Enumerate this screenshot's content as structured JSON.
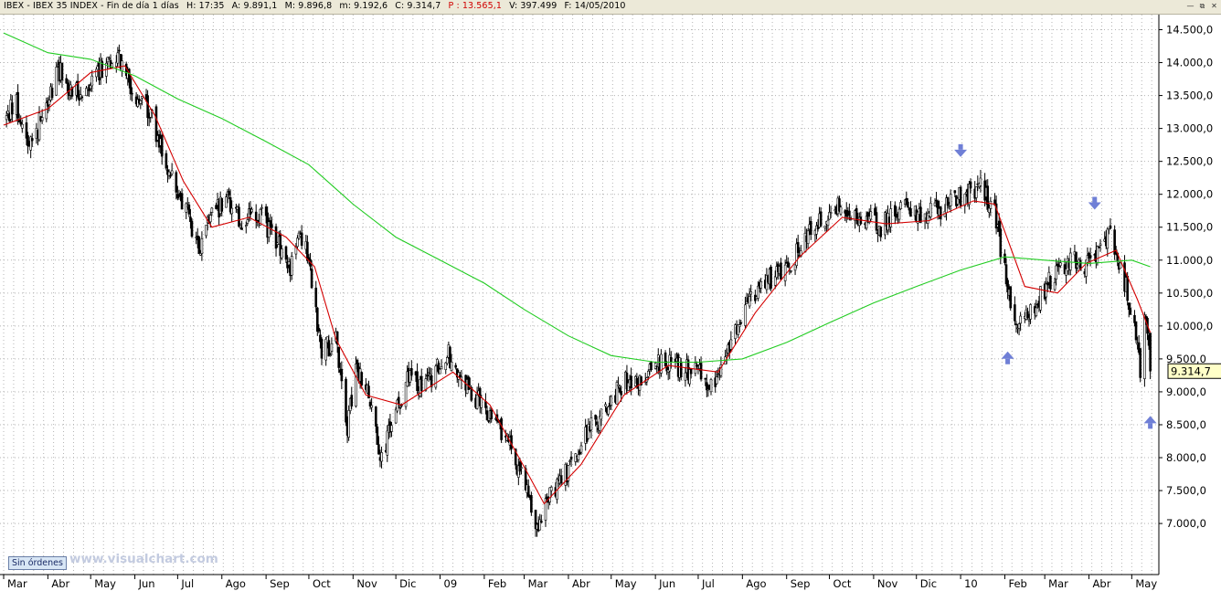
{
  "header": {
    "ticker": "IBEX - IBEX 35 INDEX - Fin de día 1 días",
    "time": "H: 17:35",
    "open": "A: 9.891,1",
    "high": "M: 9.896,8",
    "low": "m: 9.192,6",
    "close": "C: 9.314,7",
    "perf": "P : 13.565,1",
    "volume": "V: 397.499",
    "date": "F: 14/05/2010",
    "window_controls": [
      "minimize",
      "restore",
      "close"
    ]
  },
  "status_button": "Sin órdenes",
  "watermark": "www.visualchart.com",
  "last_price_label": "9.314,7",
  "chart_data": {
    "type": "candlestick",
    "ylim": [
      6400,
      14800
    ],
    "y_ticks": [
      7000,
      7500,
      8000,
      8500,
      9000,
      9500,
      10000,
      10500,
      11000,
      11500,
      12000,
      12500,
      13000,
      13500,
      14000,
      14500
    ],
    "y_tick_labels": [
      "7.000,0",
      "7.500,0",
      "8.000,0",
      "8.500,0",
      "9.000,0",
      "9.500,0",
      "10.000,0",
      "10.500,0",
      "11.000,0",
      "11.500,0",
      "12.000,0",
      "12.500,0",
      "13.000,0",
      "13.500,0",
      "14.000,0",
      "14.500,0"
    ],
    "x_range": [
      "2008-03-01",
      "2010-05-20"
    ],
    "x_labels": [
      {
        "label": "Mar",
        "date": "2008-03-01"
      },
      {
        "label": "Abr",
        "date": "2008-04-01"
      },
      {
        "label": "May",
        "date": "2008-05-01"
      },
      {
        "label": "Jun",
        "date": "2008-06-01"
      },
      {
        "label": "Jul",
        "date": "2008-07-01"
      },
      {
        "label": "Ago",
        "date": "2008-08-01"
      },
      {
        "label": "Sep",
        "date": "2008-09-01"
      },
      {
        "label": "Oct",
        "date": "2008-10-01"
      },
      {
        "label": "Nov",
        "date": "2008-11-01"
      },
      {
        "label": "Dic",
        "date": "2008-12-01"
      },
      {
        "label": "09",
        "date": "2009-01-01"
      },
      {
        "label": "Feb",
        "date": "2009-02-01"
      },
      {
        "label": "Mar",
        "date": "2009-03-01"
      },
      {
        "label": "Abr",
        "date": "2009-04-01"
      },
      {
        "label": "May",
        "date": "2009-05-01"
      },
      {
        "label": "Jun",
        "date": "2009-06-01"
      },
      {
        "label": "Jul",
        "date": "2009-07-01"
      },
      {
        "label": "Ago",
        "date": "2009-08-01"
      },
      {
        "label": "Sep",
        "date": "2009-09-01"
      },
      {
        "label": "Oct",
        "date": "2009-10-01"
      },
      {
        "label": "Nov",
        "date": "2009-11-01"
      },
      {
        "label": "Dic",
        "date": "2009-12-01"
      },
      {
        "label": "10",
        "date": "2010-01-01"
      },
      {
        "label": "Feb",
        "date": "2010-02-01"
      },
      {
        "label": "Mar",
        "date": "2010-03-01"
      },
      {
        "label": "Abr",
        "date": "2010-04-01"
      },
      {
        "label": "May",
        "date": "2010-05-01"
      }
    ],
    "price_path": [
      [
        "2008-03-01",
        13100
      ],
      [
        "2008-03-10",
        13400
      ],
      [
        "2008-03-17",
        12800
      ],
      [
        "2008-03-25",
        13000
      ],
      [
        "2008-04-01",
        13500
      ],
      [
        "2008-04-10",
        13900
      ],
      [
        "2008-04-20",
        13500
      ],
      [
        "2008-04-28",
        13700
      ],
      [
        "2008-05-08",
        13900
      ],
      [
        "2008-05-20",
        14200
      ],
      [
        "2008-05-30",
        13600
      ],
      [
        "2008-06-10",
        13300
      ],
      [
        "2008-06-20",
        12700
      ],
      [
        "2008-06-30",
        12100
      ],
      [
        "2008-07-10",
        11600
      ],
      [
        "2008-07-16",
        11100
      ],
      [
        "2008-07-25",
        11700
      ],
      [
        "2008-08-05",
        11900
      ],
      [
        "2008-08-15",
        11600
      ],
      [
        "2008-08-28",
        11700
      ],
      [
        "2008-09-05",
        11400
      ],
      [
        "2008-09-18",
        10900
      ],
      [
        "2008-09-25",
        11400
      ],
      [
        "2008-10-01",
        11000
      ],
      [
        "2008-10-10",
        9600
      ],
      [
        "2008-10-20",
        9800
      ],
      [
        "2008-10-28",
        8500
      ],
      [
        "2008-11-04",
        9400
      ],
      [
        "2008-11-12",
        8900
      ],
      [
        "2008-11-21",
        8000
      ],
      [
        "2008-12-01",
        8700
      ],
      [
        "2008-12-10",
        9200
      ],
      [
        "2008-12-20",
        9000
      ],
      [
        "2009-01-06",
        9600
      ],
      [
        "2009-01-15",
        9200
      ],
      [
        "2009-01-26",
        8900
      ],
      [
        "2009-02-09",
        8600
      ],
      [
        "2009-02-20",
        8100
      ],
      [
        "2009-03-02",
        7600
      ],
      [
        "2009-03-09",
        6900
      ],
      [
        "2009-03-20",
        7500
      ],
      [
        "2009-04-01",
        7800
      ],
      [
        "2009-04-15",
        8400
      ],
      [
        "2009-04-30",
        8800
      ],
      [
        "2009-05-10",
        9200
      ],
      [
        "2009-05-20",
        9100
      ],
      [
        "2009-06-01",
        9500
      ],
      [
        "2009-06-15",
        9400
      ],
      [
        "2009-06-30",
        9300
      ],
      [
        "2009-07-10",
        9100
      ],
      [
        "2009-07-25",
        9800
      ],
      [
        "2009-08-05",
        10400
      ],
      [
        "2009-08-20",
        10700
      ],
      [
        "2009-09-05",
        11000
      ],
      [
        "2009-09-20",
        11500
      ],
      [
        "2009-10-05",
        11800
      ],
      [
        "2009-10-20",
        11700
      ],
      [
        "2009-11-05",
        11500
      ],
      [
        "2009-11-20",
        11800
      ],
      [
        "2009-12-05",
        11700
      ],
      [
        "2009-12-20",
        11800
      ],
      [
        "2010-01-05",
        12000
      ],
      [
        "2010-01-15",
        12100
      ],
      [
        "2010-01-25",
        11700
      ],
      [
        "2010-02-04",
        10500
      ],
      [
        "2010-02-10",
        10100
      ],
      [
        "2010-02-22",
        10300
      ],
      [
        "2010-03-05",
        10700
      ],
      [
        "2010-03-18",
        11000
      ],
      [
        "2010-03-30",
        10900
      ],
      [
        "2010-04-10",
        11200
      ],
      [
        "2010-04-15",
        11400
      ],
      [
        "2010-04-27",
        10600
      ],
      [
        "2010-05-06",
        9600
      ],
      [
        "2010-05-07",
        9100
      ],
      [
        "2010-05-10",
        10300
      ],
      [
        "2010-05-14",
        9300
      ]
    ],
    "series": [
      {
        "name": "",
        "color": "#d40000",
        "kind": "short moving average",
        "values": [
          [
            "2008-03-01",
            13050
          ],
          [
            "2008-04-01",
            13300
          ],
          [
            "2008-05-01",
            13850
          ],
          [
            "2008-05-25",
            13950
          ],
          [
            "2008-06-15",
            13200
          ],
          [
            "2008-07-05",
            12200
          ],
          [
            "2008-07-25",
            11500
          ],
          [
            "2008-08-20",
            11650
          ],
          [
            "2008-09-15",
            11350
          ],
          [
            "2008-10-05",
            10900
          ],
          [
            "2008-10-20",
            9800
          ],
          [
            "2008-11-10",
            8950
          ],
          [
            "2008-12-05",
            8800
          ],
          [
            "2009-01-10",
            9300
          ],
          [
            "2009-02-05",
            8800
          ],
          [
            "2009-03-05",
            7700
          ],
          [
            "2009-03-15",
            7300
          ],
          [
            "2009-04-10",
            7900
          ],
          [
            "2009-05-10",
            8950
          ],
          [
            "2009-06-10",
            9400
          ],
          [
            "2009-07-15",
            9300
          ],
          [
            "2009-08-10",
            10200
          ],
          [
            "2009-09-10",
            11050
          ],
          [
            "2009-10-10",
            11650
          ],
          [
            "2009-11-10",
            11550
          ],
          [
            "2009-12-10",
            11600
          ],
          [
            "2010-01-10",
            11900
          ],
          [
            "2010-01-25",
            11850
          ],
          [
            "2010-02-15",
            10600
          ],
          [
            "2010-03-10",
            10500
          ],
          [
            "2010-03-30",
            10950
          ],
          [
            "2010-04-20",
            11150
          ],
          [
            "2010-05-05",
            10400
          ],
          [
            "2010-05-14",
            9900
          ]
        ]
      },
      {
        "name": "",
        "color": "#22cc22",
        "kind": "long moving average",
        "values": [
          [
            "2008-03-01",
            14450
          ],
          [
            "2008-04-01",
            14150
          ],
          [
            "2008-05-01",
            14050
          ],
          [
            "2008-06-01",
            13800
          ],
          [
            "2008-07-01",
            13450
          ],
          [
            "2008-08-01",
            13150
          ],
          [
            "2008-09-01",
            12800
          ],
          [
            "2008-10-01",
            12450
          ],
          [
            "2008-11-01",
            11850
          ],
          [
            "2008-12-01",
            11350
          ],
          [
            "2009-01-01",
            11000
          ],
          [
            "2009-02-01",
            10650
          ],
          [
            "2009-03-01",
            10250
          ],
          [
            "2009-04-01",
            9850
          ],
          [
            "2009-05-01",
            9550
          ],
          [
            "2009-06-01",
            9450
          ],
          [
            "2009-07-01",
            9450
          ],
          [
            "2009-08-01",
            9500
          ],
          [
            "2009-09-01",
            9750
          ],
          [
            "2009-10-01",
            10050
          ],
          [
            "2009-11-01",
            10350
          ],
          [
            "2009-12-01",
            10600
          ],
          [
            "2010-01-01",
            10850
          ],
          [
            "2010-02-01",
            11050
          ],
          [
            "2010-03-01",
            11000
          ],
          [
            "2010-04-01",
            10950
          ],
          [
            "2010-05-01",
            11000
          ],
          [
            "2010-05-14",
            10900
          ]
        ]
      }
    ],
    "annotations": [
      {
        "type": "arrow-down",
        "date": "2010-01-01",
        "value": 12650
      },
      {
        "type": "arrow-up",
        "date": "2010-02-03",
        "value": 9530
      },
      {
        "type": "arrow-down",
        "date": "2010-04-05",
        "value": 11850
      },
      {
        "type": "arrow-up",
        "date": "2010-05-14",
        "value": 8550
      }
    ],
    "grid": true,
    "colors": {
      "candles": "#000000",
      "grid": "#b4b4b4",
      "axis": "#000000"
    }
  }
}
